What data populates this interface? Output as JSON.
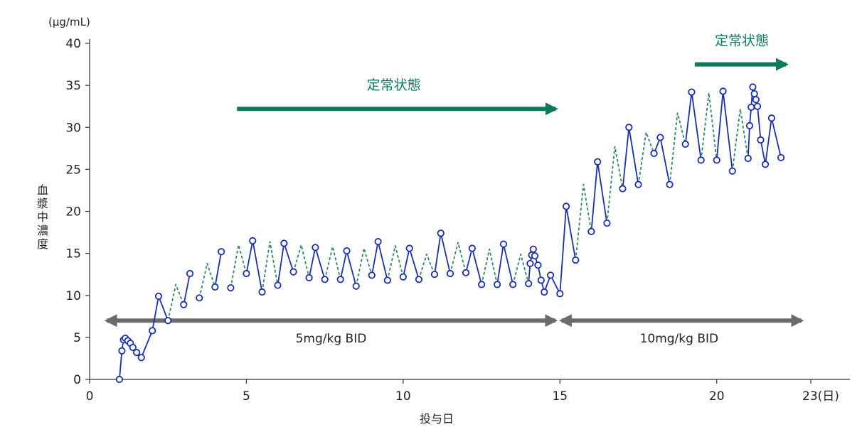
{
  "chart_data": {
    "type": "line",
    "unit_label": "(µg/mL)",
    "ylabel": "血漿中濃度",
    "xlabel": "投与日",
    "xlim": [
      0,
      23
    ],
    "ylim": [
      0,
      40
    ],
    "x_ticks": [
      0,
      5,
      10,
      15,
      20,
      23
    ],
    "x_tick_labels": [
      "0",
      "5",
      "10",
      "15",
      "20",
      "23(日)"
    ],
    "y_ticks": [
      0,
      5,
      10,
      15,
      20,
      25,
      30,
      35,
      40
    ],
    "y_tick_labels": [
      "0",
      "5",
      "10",
      "15",
      "20",
      "25",
      "30",
      "35",
      "40"
    ],
    "series": [
      {
        "style": "solid",
        "color": "#1a2fb0",
        "marker": "open-circle",
        "segments": [
          [
            [
              0.95,
              0.0
            ],
            [
              1.03,
              3.4
            ],
            [
              1.08,
              4.7
            ],
            [
              1.14,
              4.9
            ],
            [
              1.22,
              4.6
            ],
            [
              1.3,
              4.3
            ],
            [
              1.38,
              3.8
            ],
            [
              1.5,
              3.2
            ],
            [
              1.65,
              2.6
            ],
            [
              2.0,
              5.8
            ],
            [
              2.2,
              9.9
            ],
            [
              2.5,
              7.0
            ]
          ],
          [
            [
              3.0,
              8.9
            ],
            [
              3.2,
              12.6
            ]
          ],
          [
            [
              3.5,
              9.7
            ]
          ],
          [
            [
              4.0,
              11.0
            ],
            [
              4.2,
              15.2
            ]
          ],
          [
            [
              4.5,
              10.9
            ]
          ],
          [
            [
              5.0,
              12.6
            ],
            [
              5.2,
              16.5
            ],
            [
              5.5,
              10.4
            ]
          ],
          [
            [
              6.0,
              11.2
            ],
            [
              6.2,
              16.2
            ],
            [
              6.5,
              12.8
            ]
          ],
          [
            [
              7.0,
              12.1
            ],
            [
              7.2,
              15.7
            ],
            [
              7.5,
              11.9
            ]
          ],
          [
            [
              8.0,
              11.9
            ],
            [
              8.2,
              15.3
            ],
            [
              8.5,
              11.1
            ]
          ],
          [
            [
              9.0,
              12.4
            ],
            [
              9.2,
              16.4
            ],
            [
              9.5,
              11.8
            ]
          ],
          [
            [
              10.0,
              12.2
            ],
            [
              10.2,
              15.6
            ],
            [
              10.5,
              11.9
            ]
          ],
          [
            [
              11.0,
              12.5
            ],
            [
              11.2,
              17.4
            ],
            [
              11.5,
              12.6
            ]
          ],
          [
            [
              12.0,
              12.7
            ],
            [
              12.2,
              15.6
            ],
            [
              12.5,
              11.3
            ]
          ],
          [
            [
              13.0,
              11.3
            ],
            [
              13.2,
              16.1
            ],
            [
              13.5,
              11.3
            ]
          ],
          [
            [
              14.0,
              11.4
            ],
            [
              14.05,
              13.8
            ],
            [
              14.1,
              14.8
            ],
            [
              14.15,
              15.5
            ],
            [
              14.2,
              14.7
            ],
            [
              14.3,
              13.6
            ],
            [
              14.4,
              11.8
            ],
            [
              14.5,
              10.4
            ],
            [
              14.7,
              12.4
            ],
            [
              15.0,
              10.2
            ],
            [
              15.2,
              20.6
            ],
            [
              15.5,
              14.2
            ]
          ],
          [
            [
              16.0,
              17.6
            ],
            [
              16.2,
              25.9
            ],
            [
              16.5,
              18.6
            ]
          ],
          [
            [
              17.0,
              22.7
            ],
            [
              17.2,
              30.0
            ],
            [
              17.5,
              23.2
            ]
          ],
          [
            [
              18.0,
              26.9
            ],
            [
              18.2,
              28.8
            ],
            [
              18.5,
              23.2
            ]
          ],
          [
            [
              19.0,
              28.0
            ],
            [
              19.2,
              34.2
            ],
            [
              19.5,
              26.1
            ]
          ],
          [
            [
              20.0,
              26.1
            ],
            [
              20.2,
              34.3
            ],
            [
              20.5,
              24.8
            ]
          ],
          [
            [
              21.0,
              26.3
            ],
            [
              21.05,
              30.2
            ],
            [
              21.1,
              32.4
            ],
            [
              21.15,
              34.8
            ],
            [
              21.2,
              34.0
            ],
            [
              21.25,
              33.3
            ],
            [
              21.3,
              32.5
            ],
            [
              21.4,
              28.5
            ],
            [
              21.55,
              25.6
            ],
            [
              21.75,
              31.1
            ],
            [
              22.05,
              26.4
            ]
          ]
        ]
      },
      {
        "style": "dashed",
        "color": "#2e8b57",
        "marker": "none",
        "segments": [
          [
            [
              2.5,
              7.0
            ],
            [
              2.75,
              11.3
            ],
            [
              3.0,
              8.9
            ]
          ],
          [
            [
              3.5,
              9.7
            ],
            [
              3.75,
              13.8
            ],
            [
              4.0,
              11.0
            ]
          ],
          [
            [
              4.5,
              10.9
            ],
            [
              4.75,
              16.0
            ],
            [
              5.0,
              12.6
            ]
          ],
          [
            [
              5.5,
              10.4
            ],
            [
              5.75,
              16.4
            ],
            [
              6.0,
              11.2
            ]
          ],
          [
            [
              6.5,
              12.8
            ],
            [
              6.75,
              16.0
            ],
            [
              7.0,
              12.1
            ]
          ],
          [
            [
              7.5,
              11.9
            ],
            [
              7.75,
              15.8
            ],
            [
              8.0,
              11.9
            ]
          ],
          [
            [
              8.5,
              11.1
            ],
            [
              8.75,
              15.6
            ],
            [
              9.0,
              12.4
            ]
          ],
          [
            [
              9.5,
              11.8
            ],
            [
              9.75,
              15.9
            ],
            [
              10.0,
              12.2
            ]
          ],
          [
            [
              10.5,
              11.9
            ],
            [
              10.75,
              14.9
            ],
            [
              11.0,
              12.5
            ]
          ],
          [
            [
              11.5,
              12.6
            ],
            [
              11.75,
              16.3
            ],
            [
              12.0,
              12.7
            ]
          ],
          [
            [
              12.5,
              11.3
            ],
            [
              12.75,
              15.5
            ],
            [
              13.0,
              11.3
            ]
          ],
          [
            [
              13.5,
              11.3
            ],
            [
              13.75,
              14.9
            ],
            [
              14.0,
              11.4
            ]
          ],
          [
            [
              15.5,
              14.2
            ],
            [
              15.75,
              23.2
            ],
            [
              16.0,
              17.6
            ]
          ],
          [
            [
              16.5,
              18.6
            ],
            [
              16.75,
              27.7
            ],
            [
              17.0,
              22.7
            ]
          ],
          [
            [
              17.5,
              23.2
            ],
            [
              17.75,
              29.4
            ],
            [
              18.0,
              26.9
            ]
          ],
          [
            [
              18.5,
              23.2
            ],
            [
              18.75,
              31.7
            ],
            [
              19.0,
              28.0
            ]
          ],
          [
            [
              19.5,
              26.1
            ],
            [
              19.75,
              34.1
            ],
            [
              20.0,
              26.1
            ]
          ],
          [
            [
              20.5,
              24.8
            ],
            [
              20.75,
              32.2
            ],
            [
              21.0,
              26.3
            ]
          ]
        ]
      }
    ],
    "annotations": [
      {
        "kind": "double-arrow",
        "x1": 0.55,
        "x2": 14.85,
        "y": 7.0,
        "label": "5mg/kg BID",
        "label_x": 7.7,
        "color": "#6b6b6b"
      },
      {
        "kind": "double-arrow",
        "x1": 15.05,
        "x2": 22.7,
        "y": 7.0,
        "label": "10mg/kg BID",
        "label_x": 18.8,
        "color": "#6b6b6b"
      },
      {
        "kind": "arrow",
        "x1": 4.7,
        "x2": 15.0,
        "y": 32.2,
        "label": "定常状態",
        "label_x": 9.7,
        "label_y": 34.5,
        "color": "#0f7a5a"
      },
      {
        "kind": "arrow",
        "x1": 19.3,
        "x2": 22.35,
        "y": 37.5,
        "label": "定常状態",
        "label_x": 20.8,
        "label_y": 39.8,
        "color": "#0f7a5a"
      }
    ]
  }
}
